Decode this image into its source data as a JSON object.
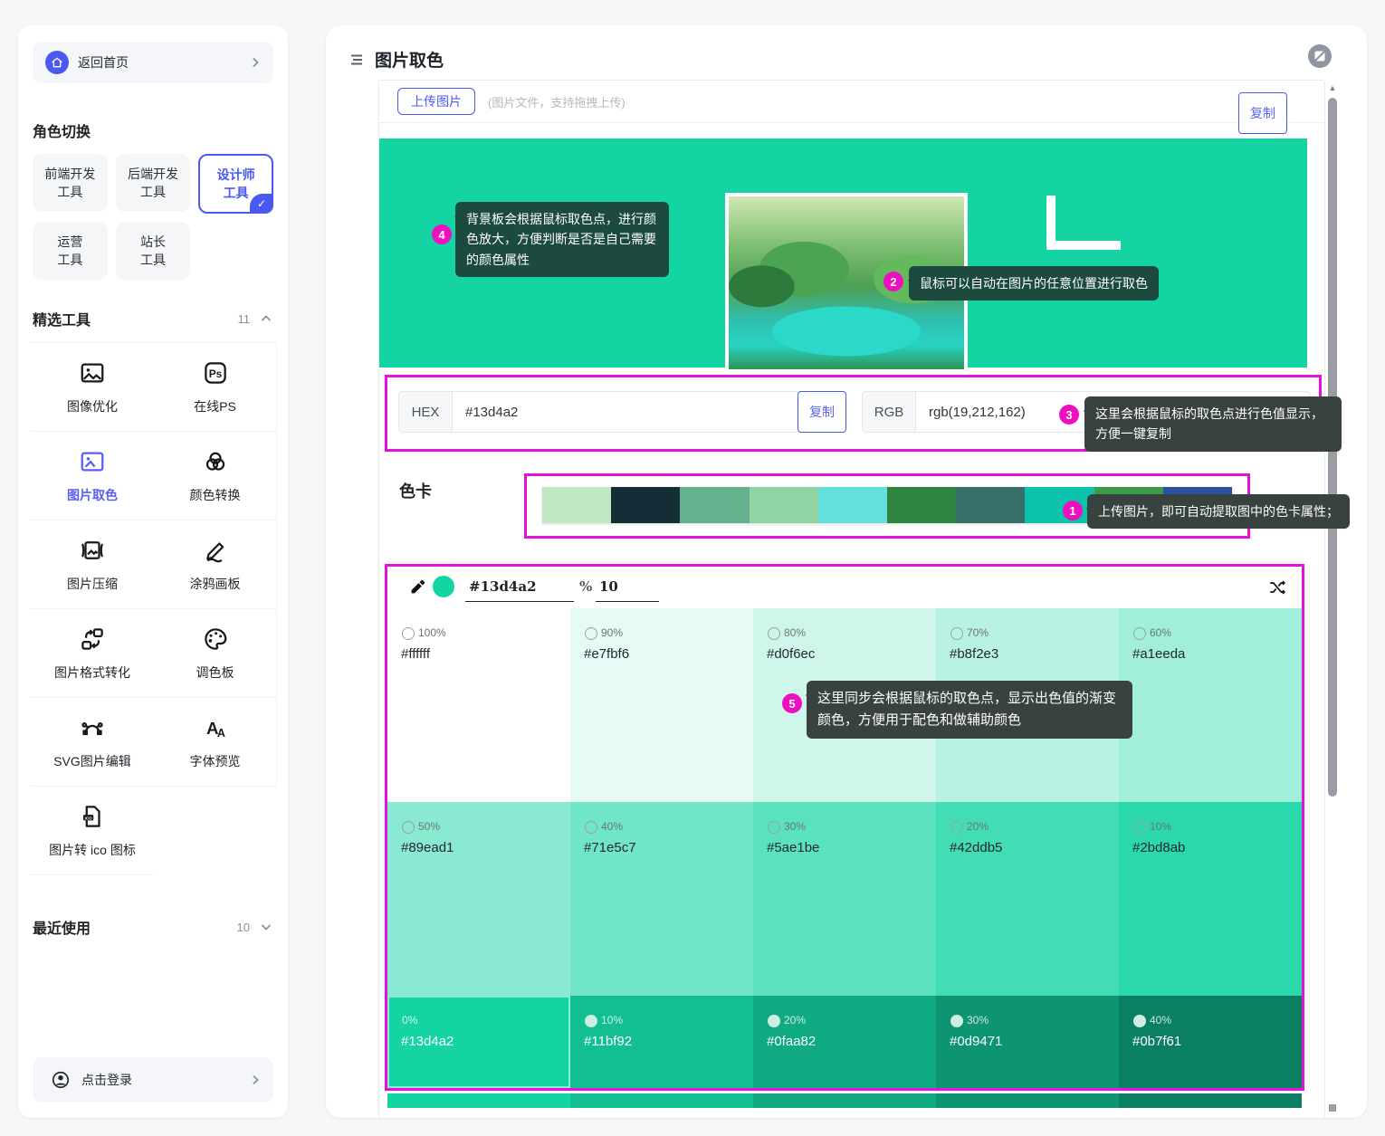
{
  "sidebar": {
    "home": {
      "label": "返回首页"
    },
    "role_section": {
      "title": "角色切换"
    },
    "roles": [
      {
        "line1": "前端开发",
        "line2": "工具",
        "active": false
      },
      {
        "line1": "后端开发",
        "line2": "工具",
        "active": false
      },
      {
        "line1": "设计师",
        "line2": "工具",
        "active": true,
        "check": "✓"
      },
      {
        "line1": "运营",
        "line2": "工具",
        "active": false
      },
      {
        "line1": "站长",
        "line2": "工具",
        "active": false
      }
    ],
    "featured": {
      "title": "精选工具",
      "count": "11"
    },
    "tools": [
      {
        "label": "图像优化",
        "icon": "i-image",
        "active": false
      },
      {
        "label": "在线PS",
        "icon": "i-ps",
        "active": false
      },
      {
        "label": "图片取色",
        "icon": "i-pick",
        "active": true
      },
      {
        "label": "颜色转换",
        "icon": "i-venn",
        "active": false
      },
      {
        "label": "图片压缩",
        "icon": "i-compress",
        "active": false
      },
      {
        "label": "涂鸦画板",
        "icon": "i-pen",
        "active": false
      },
      {
        "label": "图片格式转化",
        "icon": "i-format",
        "active": false
      },
      {
        "label": "调色板",
        "icon": "i-palette",
        "active": false
      },
      {
        "label": "SVG图片编辑",
        "icon": "i-bezier",
        "active": false
      },
      {
        "label": "字体预览",
        "icon": "i-font",
        "active": false
      },
      {
        "label": "图片转 ico 图标",
        "icon": "i-ico",
        "active": false
      }
    ],
    "recent": {
      "title": "最近使用",
      "count": "10"
    },
    "login": {
      "label": "点击登录"
    }
  },
  "main": {
    "title": "图片取色",
    "upload": {
      "button": "上传图片",
      "hint": "(图片文件，支持拖拽上传)"
    },
    "hex": {
      "label": "HEX",
      "value": "#13d4a2",
      "copy": "复制"
    },
    "rgb": {
      "label": "RGB",
      "value": "rgb(19,212,162)",
      "copy": "复制"
    },
    "palette": {
      "label": "色卡",
      "colors": [
        "#c0e6c4",
        "#142e37",
        "#64b08f",
        "#90d5a3",
        "#65dfdb",
        "#2e8540",
        "#37706b",
        "#0bc3ad",
        "#3e9a4b",
        "#2c4f9f"
      ]
    },
    "picker": {
      "hex": "#13d4a2",
      "percent_sign": "%",
      "percent": "10"
    },
    "annotations": {
      "ann1": {
        "num": "1",
        "text": "上传图片，即可自动提取图中的色卡属性；"
      },
      "ann2": {
        "num": "2",
        "text": "鼠标可以自动在图片的任意位置进行取色"
      },
      "ann3": {
        "num": "3",
        "text": "这里会根据鼠标的取色点进行色值显示，方便一键复制"
      },
      "ann4": {
        "num": "4",
        "text": "背景板会根据鼠标取色点，进行颜色放大，方便判断是否是自己需要的颜色属性"
      },
      "ann5": {
        "num": "5",
        "text": "这里同步会根据鼠标的取色点，显示出色值的渐变颜色，方便用于配色和做辅助颜色"
      }
    },
    "grad_row1": [
      {
        "pct": "100%",
        "hex": "#ffffff",
        "bg": "#ffffff",
        "circle": "outline",
        "light": false,
        "selected": false
      },
      {
        "pct": "90%",
        "hex": "#e7fbf6",
        "bg": "#e7fbf6",
        "circle": "outline",
        "light": false,
        "selected": false
      },
      {
        "pct": "80%",
        "hex": "#d0f6ec",
        "bg": "#d0f6ec",
        "circle": "outline",
        "light": false,
        "selected": false
      },
      {
        "pct": "70%",
        "hex": "#b8f2e3",
        "bg": "#b8f2e3",
        "circle": "outline",
        "light": false,
        "selected": false
      },
      {
        "pct": "60%",
        "hex": "#a1eeda",
        "bg": "#a1eeda",
        "circle": "outline",
        "light": false,
        "selected": false
      }
    ],
    "grad_row2": [
      {
        "pct": "50%",
        "hex": "#89ead1",
        "bg": "#89ead1",
        "circle": "outline",
        "light": false,
        "selected": false
      },
      {
        "pct": "40%",
        "hex": "#71e5c7",
        "bg": "#71e5c7",
        "circle": "outline",
        "light": false,
        "selected": false
      },
      {
        "pct": "30%",
        "hex": "#5ae1be",
        "bg": "#5ae1be",
        "circle": "outline",
        "light": false,
        "selected": false
      },
      {
        "pct": "20%",
        "hex": "#42ddb5",
        "bg": "#42ddb5",
        "circle": "outline",
        "light": false,
        "selected": false
      },
      {
        "pct": "10%",
        "hex": "#2bd8ab",
        "bg": "#2bd8ab",
        "circle": "outline",
        "light": false,
        "selected": false
      }
    ],
    "grad_row3": [
      {
        "pct": "0%",
        "hex": "#13d4a2",
        "bg": "#13d4a2",
        "circle": "none",
        "light": true,
        "selected": true
      },
      {
        "pct": "10%",
        "hex": "#11bf92",
        "bg": "#11bf92",
        "circle": "filled",
        "light": true,
        "selected": false
      },
      {
        "pct": "20%",
        "hex": "#0faa82",
        "bg": "#0faa82",
        "circle": "filled",
        "light": true,
        "selected": false
      },
      {
        "pct": "30%",
        "hex": "#0d9471",
        "bg": "#0d9471",
        "circle": "filled",
        "light": true,
        "selected": false
      },
      {
        "pct": "40%",
        "hex": "#0b7f61",
        "bg": "#0b7f61",
        "circle": "filled",
        "light": true,
        "selected": false
      }
    ],
    "partial_row": [
      "#13d4a2",
      "#11bf92",
      "#0faa82",
      "#0d9471",
      "#0b7f61"
    ]
  },
  "colors": {
    "accent": "#4a5af0",
    "canvas": "#13d4a2",
    "highlight_border": "#e711dd",
    "pin": "#ee10c0"
  }
}
